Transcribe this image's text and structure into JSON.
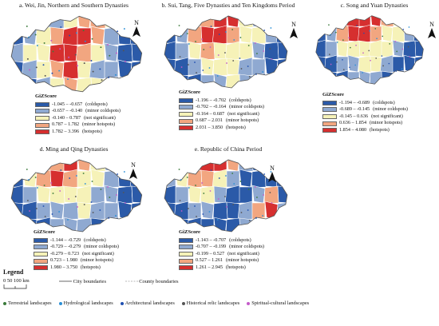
{
  "panels": [
    {
      "title": "a. Wei, Jin, Northern and Southern Dynasties",
      "legend_title": "GiZScore",
      "classes": [
        {
          "range": "-1.045 – -0.657",
          "label": "(coldspots)"
        },
        {
          "range": "-0.657 – -0.140",
          "label": "(minor coldspots)"
        },
        {
          "range": "-0.140 – 0.787",
          "label": "(not significant)"
        },
        {
          "range": "0.787 – 1.782",
          "label": "(minor hotspots)"
        },
        {
          "range": "1.782 – 3.396",
          "label": "(hotspots)"
        }
      ]
    },
    {
      "title": "b. Sui, Tang, Five Dynasties and Ten Kingdoms Period",
      "legend_title": "GiZScore",
      "classes": [
        {
          "range": "-1.196 – -0.702",
          "label": "(coldspots)"
        },
        {
          "range": "-0.702 – -0.164",
          "label": "(minor coldspots)"
        },
        {
          "range": "-0.164 – 0.687",
          "label": "(not significant)"
        },
        {
          "range": "0.687 – 2.031",
          "label": "(minor hotspots)"
        },
        {
          "range": "2.031 – 3.850",
          "label": "(hotspots)"
        }
      ]
    },
    {
      "title": "c. Song and Yuan Dynasties",
      "legend_title": "GiZScore",
      "classes": [
        {
          "range": "-1.194 – -0.689",
          "label": "(coldspots)"
        },
        {
          "range": "-0.689 – -0.145",
          "label": "(minor coldspots)"
        },
        {
          "range": "-0.145 – 0.636",
          "label": "(not significant)"
        },
        {
          "range": "0.636 – 1.854",
          "label": "(minor hotspots)"
        },
        {
          "range": "1.854 – 4.080",
          "label": "(hotspots)"
        }
      ]
    },
    {
      "title": "d. Ming and Qing Dynasties",
      "legend_title": "GiZScore",
      "classes": [
        {
          "range": "-1.144 – -0.729",
          "label": "(coldspots)"
        },
        {
          "range": "-0.729 – -0.279",
          "label": "(minor coldspots)"
        },
        {
          "range": "-0.279 – 0.723",
          "label": "(not significant)"
        },
        {
          "range": "0.723 – 1.980",
          "label": "(minor hotspots)"
        },
        {
          "range": "1.980 – 3.750",
          "label": "(hotspots)"
        }
      ]
    },
    {
      "title": "e. Republic of China Period",
      "legend_title": "GiZScore",
      "classes": [
        {
          "range": "-1.143 – -0.707",
          "label": "(coldspots)"
        },
        {
          "range": "-0.707 – -0.199",
          "label": "(minor coldspots)"
        },
        {
          "range": "-0.199 – 0.527",
          "label": "(not significant)"
        },
        {
          "range": "0.527 – 1.261",
          "label": "(minor hotspots)"
        },
        {
          "range": "1.261 – 2.945",
          "label": "(hotspots)"
        }
      ]
    }
  ],
  "class_colors": [
    "#2b5aa8",
    "#8fa9d1",
    "#f6f2b8",
    "#f2a680",
    "#d62f2f"
  ],
  "north_label": "N",
  "legend": {
    "title": "Legend",
    "scale_label": "0  50 100 km",
    "city_boundaries": "City boundaries",
    "county_boundaries": "County boundaries",
    "landscapes": [
      {
        "label": "Terrestrial landscapes",
        "color": "#3a7a3a"
      },
      {
        "label": "Hydrological landscapes",
        "color": "#2a8fd6"
      },
      {
        "label": "Architectural landscapes",
        "color": "#1f4fb0"
      },
      {
        "label": "Historical relic landscapes",
        "color": "#555555"
      },
      {
        "label": "Spiritual-cultural landscapes",
        "color": "#c45ac9"
      }
    ]
  }
}
